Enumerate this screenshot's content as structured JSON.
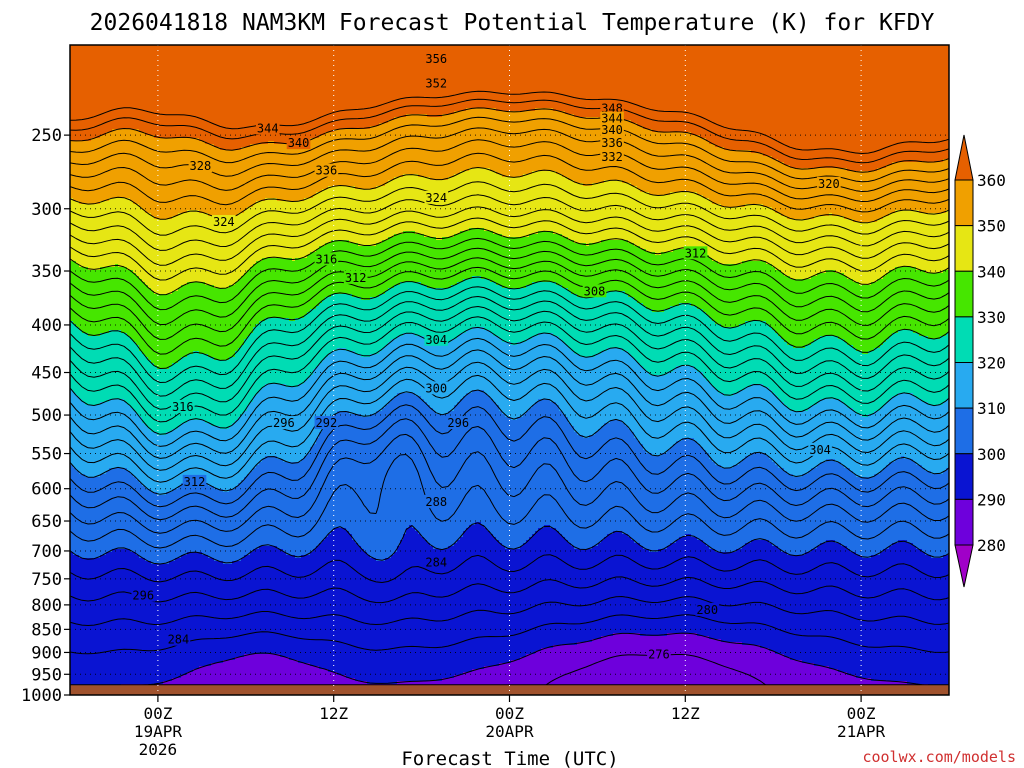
{
  "chart_data": {
    "type": "heatmap",
    "title": "2026041818 NAM3KM Forecast Potential Temperature (K) for KFDY",
    "xlabel": "Forecast Time (UTC)",
    "ylabel": "",
    "credit": "coolwx.com/models",
    "x_ticks": [
      {
        "hour": 6,
        "lines": [
          "00Z",
          "19APR",
          "2026"
        ]
      },
      {
        "hour": 18,
        "lines": [
          "12Z"
        ]
      },
      {
        "hour": 30,
        "lines": [
          "00Z",
          "20APR"
        ]
      },
      {
        "hour": 42,
        "lines": [
          "12Z"
        ]
      },
      {
        "hour": 54,
        "lines": [
          "00Z",
          "21APR"
        ]
      }
    ],
    "xlim": [
      0,
      60
    ],
    "y_ticks": [
      250,
      300,
      350,
      400,
      450,
      500,
      550,
      600,
      650,
      700,
      750,
      800,
      850,
      900,
      950,
      1000
    ],
    "ylim": [
      200,
      1000
    ],
    "y_scale": "log",
    "surface_pressure": 975,
    "colorbar": {
      "levels": [
        280,
        290,
        300,
        310,
        320,
        330,
        340,
        350,
        360
      ],
      "colors": [
        "#a000c8",
        "#6e00dc",
        "#0a14d2",
        "#1e6ee6",
        "#28aaf0",
        "#00dcb4",
        "#46e600",
        "#e6e614",
        "#f0a000",
        "#e66000"
      ]
    },
    "contour_interval": 2,
    "contour_labels": [
      {
        "value": 356,
        "hour": 25.0,
        "p": 207
      },
      {
        "value": 352,
        "hour": 25.0,
        "p": 220
      },
      {
        "value": 348,
        "hour": 37.0,
        "p": 234
      },
      {
        "value": 344,
        "hour": 37.0,
        "p": 240
      },
      {
        "value": 340,
        "hour": 37.0,
        "p": 247
      },
      {
        "value": 336,
        "hour": 37.0,
        "p": 255
      },
      {
        "value": 332,
        "hour": 37.0,
        "p": 264
      },
      {
        "value": 344,
        "hour": 13.5,
        "p": 246
      },
      {
        "value": 340,
        "hour": 15.6,
        "p": 255
      },
      {
        "value": 336,
        "hour": 17.5,
        "p": 273
      },
      {
        "value": 328,
        "hour": 8.9,
        "p": 270
      },
      {
        "value": 324,
        "hour": 10.5,
        "p": 310
      },
      {
        "value": 324,
        "hour": 25.0,
        "p": 292
      },
      {
        "value": 320,
        "hour": 51.8,
        "p": 282
      },
      {
        "value": 316,
        "hour": 17.5,
        "p": 340
      },
      {
        "value": 312,
        "hour": 19.5,
        "p": 356
      },
      {
        "value": 312,
        "hour": 42.7,
        "p": 335
      },
      {
        "value": 308,
        "hour": 35.8,
        "p": 368
      },
      {
        "value": 304,
        "hour": 25.0,
        "p": 415
      },
      {
        "value": 300,
        "hour": 25.0,
        "p": 468
      },
      {
        "value": 296,
        "hour": 26.5,
        "p": 510
      },
      {
        "value": 292,
        "hour": 17.5,
        "p": 510
      },
      {
        "value": 296,
        "hour": 14.6,
        "p": 510
      },
      {
        "value": 316,
        "hour": 7.7,
        "p": 490
      },
      {
        "value": 312,
        "hour": 8.5,
        "p": 590
      },
      {
        "value": 304,
        "hour": 51.2,
        "p": 545
      },
      {
        "value": 288,
        "hour": 25.0,
        "p": 620
      },
      {
        "value": 284,
        "hour": 25.0,
        "p": 720
      },
      {
        "value": 280,
        "hour": 43.5,
        "p": 810
      },
      {
        "value": 276,
        "hour": 40.2,
        "p": 905
      },
      {
        "value": 284,
        "hour": 7.4,
        "p": 872
      },
      {
        "value": 296,
        "hour": 5.0,
        "p": 782
      }
    ]
  }
}
